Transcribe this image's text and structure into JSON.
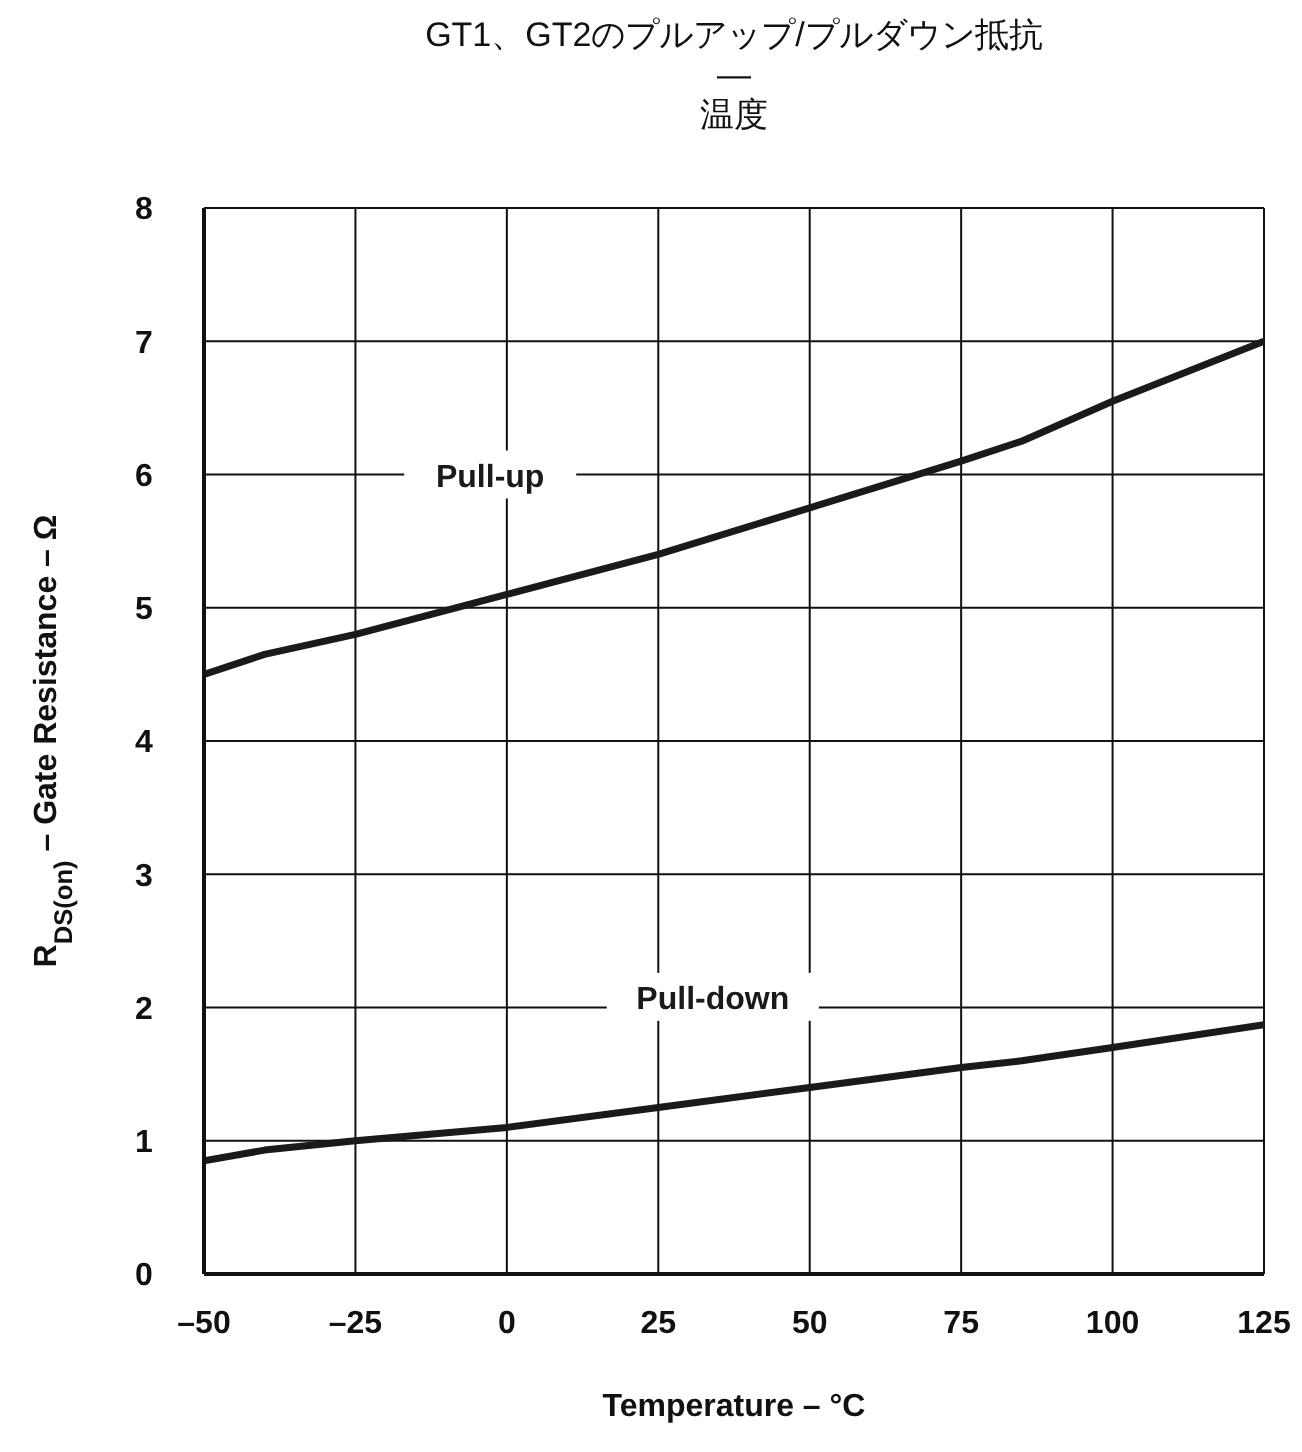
{
  "chart_data": {
    "type": "line",
    "title": "GT1、GT2のプルアップ/プルダウン抵抗\n—\n温度",
    "xlabel": "Temperature – °C",
    "ylabel": "R$_{DS(on)}$ – Gate Resistance – Ω",
    "x": [
      -50,
      -40,
      -25,
      0,
      25,
      50,
      75,
      85,
      100,
      125
    ],
    "series": [
      {
        "name": "Pull-up",
        "color": "#1a1a1a",
        "values": [
          4.5,
          4.65,
          4.8,
          5.1,
          5.4,
          5.75,
          6.1,
          6.25,
          6.55,
          7.0
        ]
      },
      {
        "name": "Pull-down",
        "color": "#1a1a1a",
        "values": [
          0.85,
          0.93,
          1.0,
          1.1,
          1.25,
          1.4,
          1.55,
          1.6,
          1.7,
          1.87
        ]
      }
    ],
    "xlim": [
      -50,
      125
    ],
    "xticks": [
      {
        "value": -50,
        "label": "–50"
      },
      {
        "value": -25,
        "label": "–25"
      },
      0,
      25,
      50,
      75,
      100,
      125
    ],
    "ylim": [
      0,
      8
    ],
    "yticks": [
      0,
      1,
      2,
      3,
      4,
      5,
      6,
      7,
      8
    ],
    "grid": true
  }
}
